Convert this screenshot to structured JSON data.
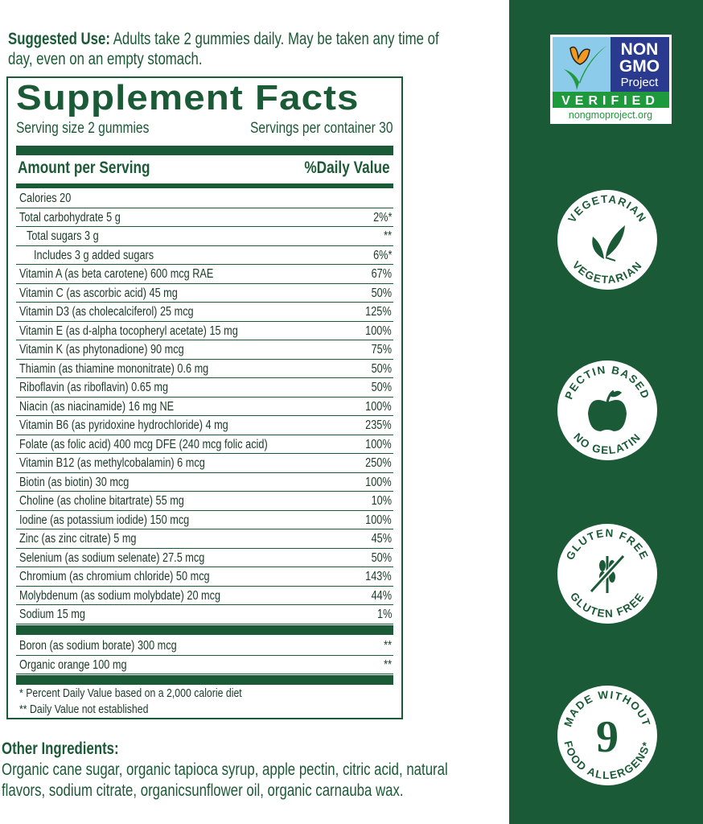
{
  "suggested_use": {
    "label": "Suggested Use:",
    "text": " Adults take 2 gummies daily. May be taken any time of day, even on an empty stomach."
  },
  "facts": {
    "title": "Supplement Facts",
    "serving_size": "Serving size 2 gummies",
    "servings_per_container": "Servings per container 30",
    "amount_header": "Amount per Serving",
    "dv_header": "%Daily Value",
    "rows": [
      {
        "name": "Calories 20",
        "dv": ""
      },
      {
        "name": "Total carbohydrate 5 g",
        "dv": "2%*"
      },
      {
        "name": "Total sugars  3 g",
        "dv": "**",
        "indent": 1
      },
      {
        "name": "Includes 3 g added sugars",
        "dv": "6%*",
        "indent": 2
      },
      {
        "name": "Vitamin A (as beta carotene) 600 mcg RAE",
        "dv": "67%"
      },
      {
        "name": "Vitamin C (as ascorbic acid) 45 mg",
        "dv": "50%"
      },
      {
        "name": "Vitamin D3 (as cholecalciferol) 25 mcg",
        "dv": "125%"
      },
      {
        "name": "Vitamin E (as d-alpha tocopheryl acetate) 15 mg",
        "dv": "100%"
      },
      {
        "name": "Vitamin K (as phytonadione) 90 mcg",
        "dv": "75%"
      },
      {
        "name": "Thiamin (as thiamine mononitrate) 0.6 mg",
        "dv": "50%"
      },
      {
        "name": "Riboflavin (as riboflavin) 0.65 mg",
        "dv": "50%"
      },
      {
        "name": "Niacin (as niacinamide) 16 mg NE",
        "dv": "100%"
      },
      {
        "name": "Vitamin B6 (as pyridoxine hydrochloride) 4 mg",
        "dv": "235%"
      },
      {
        "name": "Folate (as folic acid) 400 mcg DFE (240 mcg folic acid)",
        "dv": "100%"
      },
      {
        "name": "Vitamin B12 (as methylcobalamin) 6 mcg",
        "dv": "250%"
      },
      {
        "name": "Biotin (as biotin) 30 mcg",
        "dv": "100%"
      },
      {
        "name": "Choline (as choline bitartrate) 55 mg",
        "dv": "10%"
      },
      {
        "name": "Iodine (as potassium iodide) 150 mcg",
        "dv": "100%"
      },
      {
        "name": "Zinc (as zinc citrate) 5 mg",
        "dv": "45%"
      },
      {
        "name": "Selenium (as sodium selenate) 27.5 mcg",
        "dv": "50%"
      },
      {
        "name": "Chromium (as chromium chloride) 50 mcg",
        "dv": "143%"
      },
      {
        "name": "Molybdenum (as sodium molybdate) 20 mcg",
        "dv": "44%"
      },
      {
        "name": "Sodium 15 mg",
        "dv": "1%"
      }
    ],
    "other_rows": [
      {
        "name": "Boron (as sodium borate) 300 mcg",
        "dv": "**"
      },
      {
        "name": "Organic orange 100 mg",
        "dv": "**"
      }
    ],
    "footnotes": [
      "* Percent Daily Value based on a 2,000 calorie diet",
      "** Daily Value not established"
    ]
  },
  "other_ingredients": {
    "label": "Other Ingredients:",
    "text": "Organic cane sugar, organic tapioca syrup, apple pectin, citric acid, natural flavors, sodium citrate, organicsunflower oil, organic carnauba wax."
  },
  "badges": {
    "non_gmo": {
      "line1": "NON",
      "line2": "GMO",
      "line3": "Project",
      "verified": "VERIFIED",
      "url": "nongmoproject.org"
    },
    "vegetarian": {
      "top": "VEGETARIAN",
      "bottom": "VEGETARIAN"
    },
    "pectin": {
      "top": "PECTIN BASED",
      "bottom": "NO GELATIN"
    },
    "gluten": {
      "top": "GLUTEN FREE",
      "bottom": "GLUTEN FREE"
    },
    "allergens": {
      "top": "MADE WITHOUT",
      "number": "9",
      "bottom": "FOOD ALLERGENS*"
    }
  },
  "colors": {
    "brand_green": "#1a5a37",
    "gmo_blue": "#2a3b8f",
    "gmo_green": "#1e9a3c",
    "gmo_sky": "#8ccbea",
    "butterfly": "#f29a1f"
  }
}
